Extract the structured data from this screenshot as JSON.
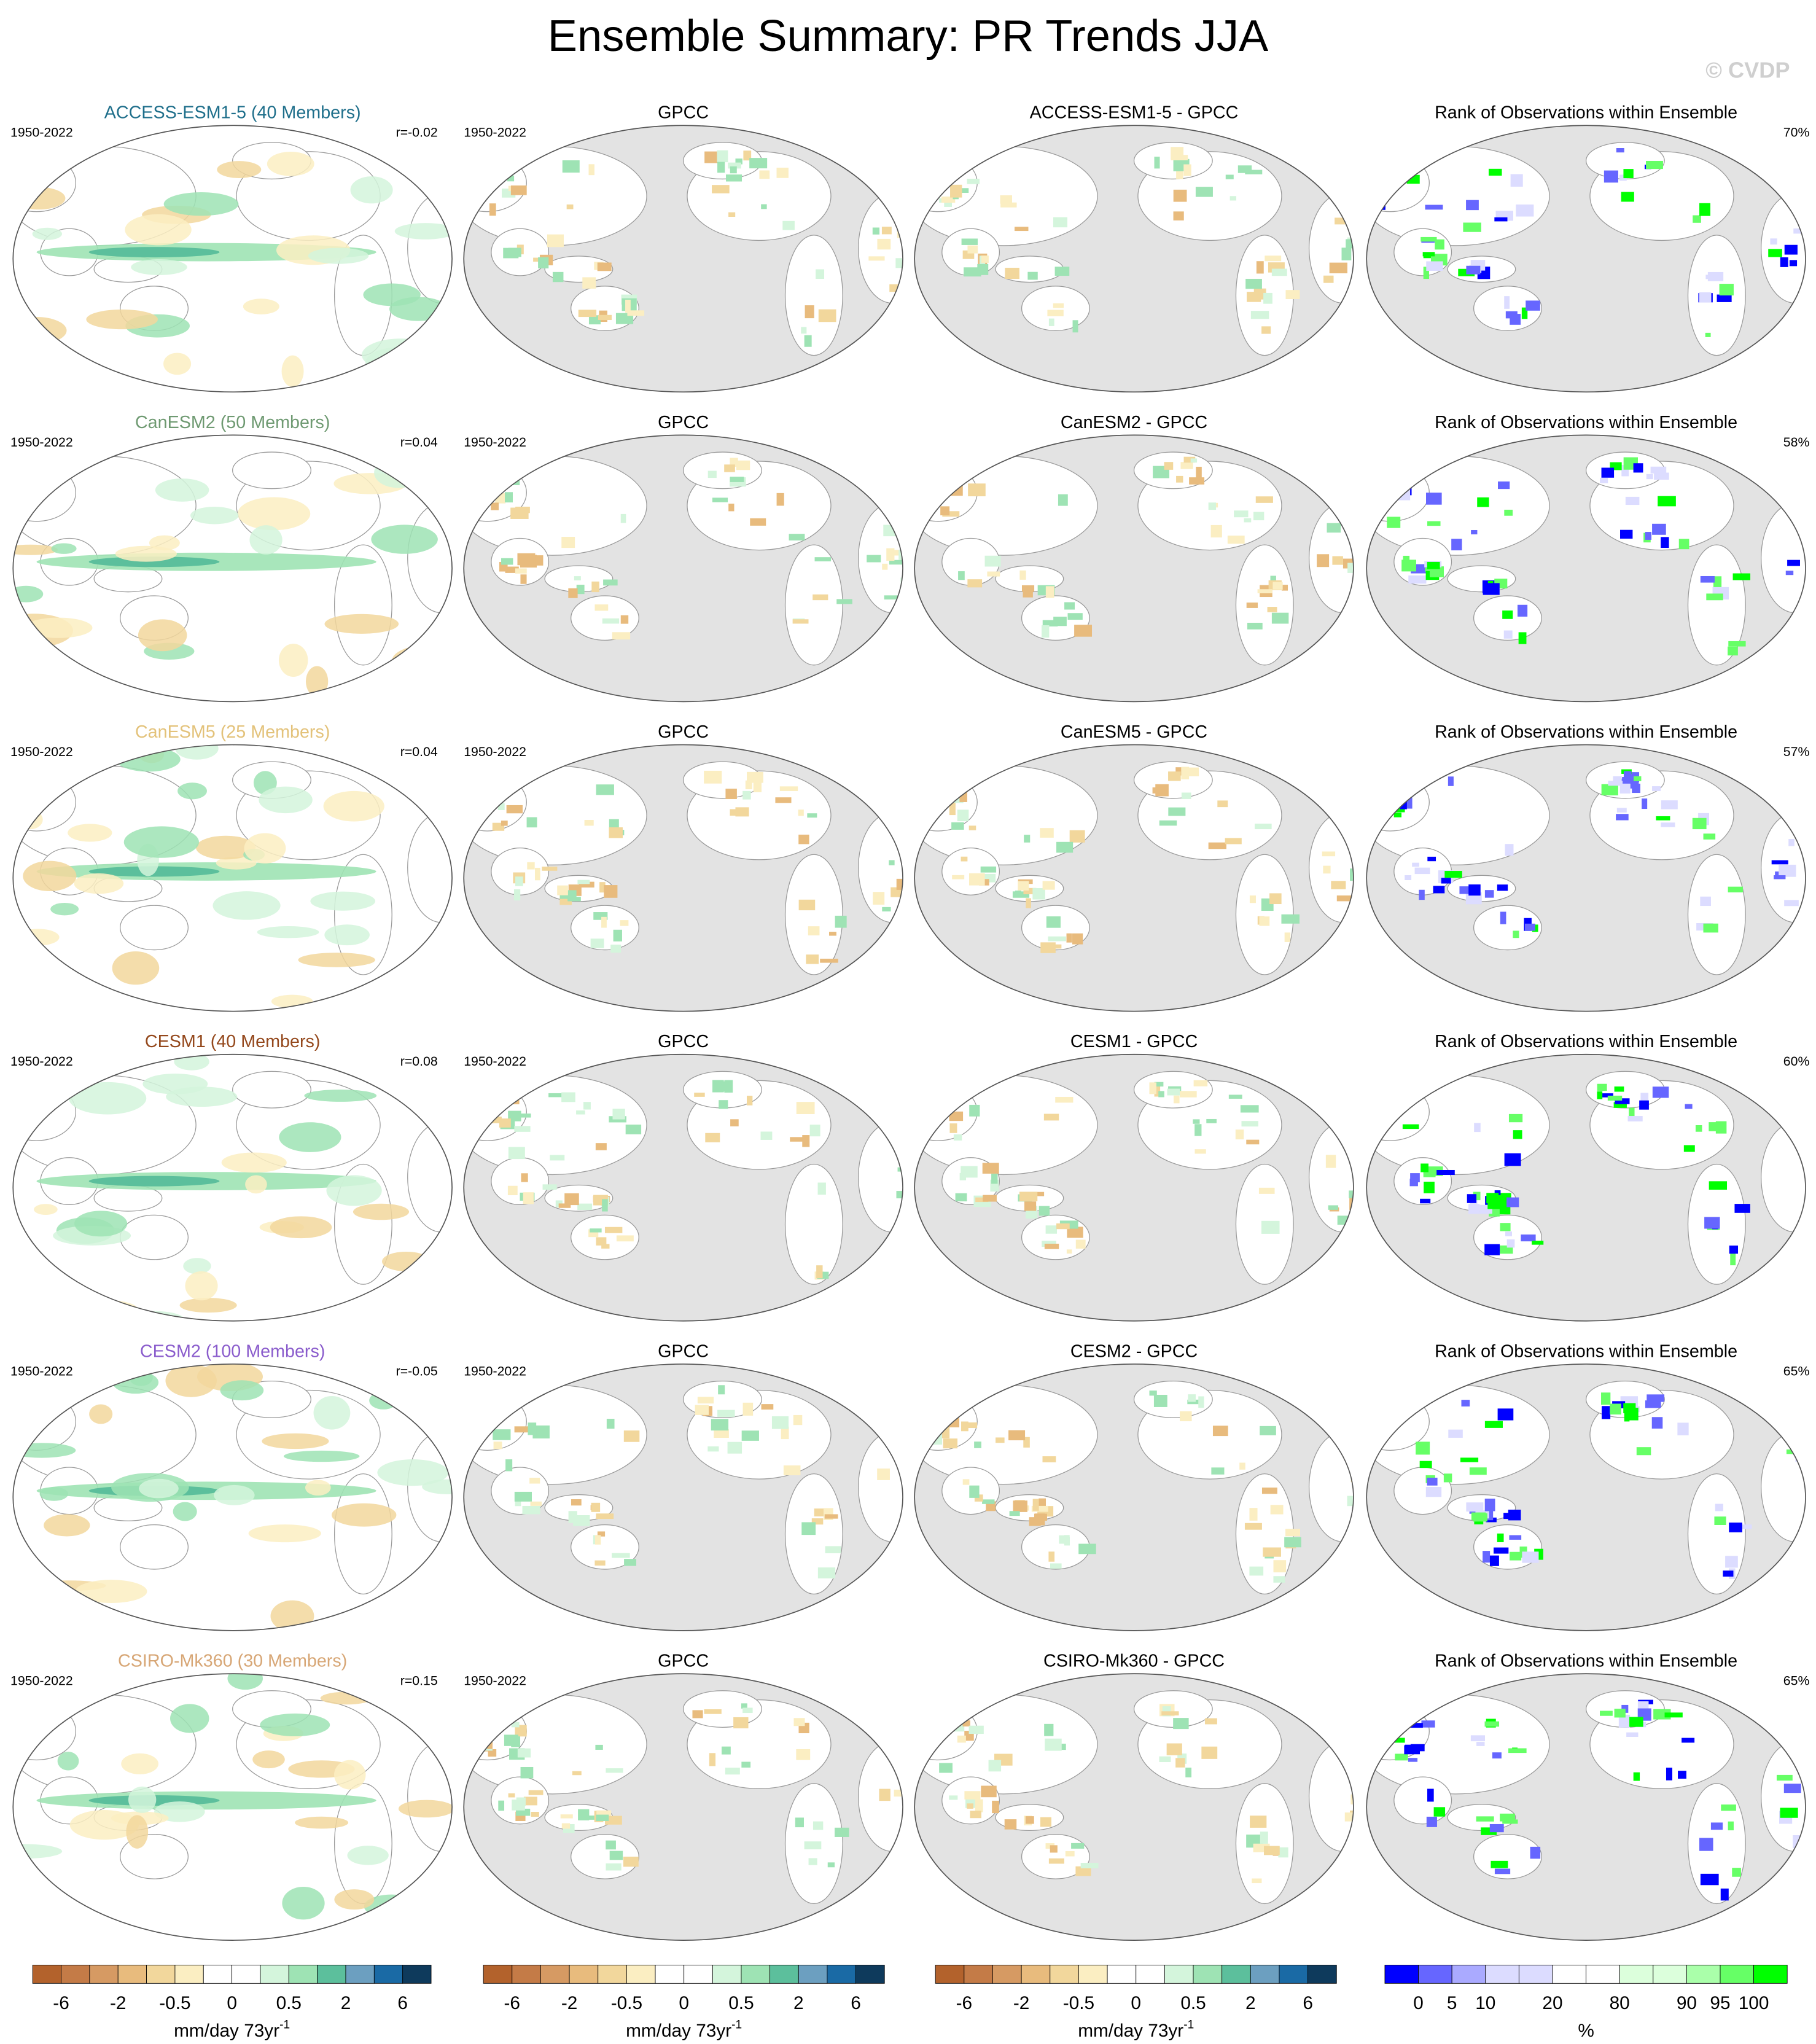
{
  "title": "Ensemble Summary: PR Trends JJA",
  "watermark": "© CVDP",
  "rows": [
    {
      "model": "ACCESS-ESM1-5 (40 Members)",
      "model_color": "#1f6f8b",
      "period": "1950-2022",
      "r": "r=-0.02",
      "obs_title": "GPCC",
      "obs_period": "1950-2022",
      "diff_title": "ACCESS-ESM1-5 - GPCC",
      "rank_title": "Rank of Observations within Ensemble",
      "rank_pct": "70%"
    },
    {
      "model": "CanESM2 (50 Members)",
      "model_color": "#6f9a72",
      "period": "1950-2022",
      "r": "r=0.04",
      "obs_title": "GPCC",
      "obs_period": "1950-2022",
      "diff_title": "CanESM2 - GPCC",
      "rank_title": "Rank of Observations within Ensemble",
      "rank_pct": "58%"
    },
    {
      "model": "CanESM5 (25 Members)",
      "model_color": "#e3c27a",
      "period": "1950-2022",
      "r": "r=0.04",
      "obs_title": "GPCC",
      "obs_period": "1950-2022",
      "diff_title": "CanESM5 - GPCC",
      "rank_title": "Rank of Observations within Ensemble",
      "rank_pct": "57%"
    },
    {
      "model": "CESM1 (40 Members)",
      "model_color": "#94481c",
      "period": "1950-2022",
      "r": "r=0.08",
      "obs_title": "GPCC",
      "obs_period": "1950-2022",
      "diff_title": "CESM1 - GPCC",
      "rank_title": "Rank of Observations within Ensemble",
      "rank_pct": "60%"
    },
    {
      "model": "CESM2 (100 Members)",
      "model_color": "#8a5ccc",
      "period": "1950-2022",
      "r": "r=-0.05",
      "obs_title": "GPCC",
      "obs_period": "1950-2022",
      "diff_title": "CESM2 - GPCC",
      "rank_title": "Rank of Observations within Ensemble",
      "rank_pct": "65%"
    },
    {
      "model": "CSIRO-Mk360 (30 Members)",
      "model_color": "#d7a675",
      "period": "1950-2022",
      "r": "r=0.15",
      "obs_title": "GPCC",
      "obs_period": "1950-2022",
      "diff_title": "CSIRO-Mk360 - GPCC",
      "rank_title": "Rank of Observations within Ensemble",
      "rank_pct": "65%"
    }
  ],
  "colorbars": [
    {
      "labels": [
        -6,
        -2,
        -0.5,
        0,
        0.5,
        2,
        6
      ],
      "unit": "mm/day 73yr",
      "unit_sup": "-1",
      "colors": [
        "#b3622c",
        "#c47b47",
        "#d69a63",
        "#e8bb7d",
        "#f2d79c",
        "#fbeec2",
        "#ffffff",
        "#ffffff",
        "#d4f5dc",
        "#9ee3b4",
        "#5cbf9c",
        "#6c9fc0",
        "#1a6aa5",
        "#0e3a5c"
      ]
    },
    {
      "labels": [
        -6,
        -2,
        -0.5,
        0,
        0.5,
        2,
        6
      ],
      "unit": "mm/day 73yr",
      "unit_sup": "-1",
      "colors": [
        "#b3622c",
        "#c47b47",
        "#d69a63",
        "#e8bb7d",
        "#f2d79c",
        "#fbeec2",
        "#ffffff",
        "#ffffff",
        "#d4f5dc",
        "#9ee3b4",
        "#5cbf9c",
        "#6c9fc0",
        "#1a6aa5",
        "#0e3a5c"
      ]
    },
    {
      "labels": [
        -6,
        -2,
        -0.5,
        0,
        0.5,
        2,
        6
      ],
      "unit": "mm/day 73yr",
      "unit_sup": "-1",
      "colors": [
        "#b3622c",
        "#c47b47",
        "#d69a63",
        "#e8bb7d",
        "#f2d79c",
        "#fbeec2",
        "#ffffff",
        "#ffffff",
        "#d4f5dc",
        "#9ee3b4",
        "#5cbf9c",
        "#6c9fc0",
        "#1a6aa5",
        "#0e3a5c"
      ]
    },
    {
      "labels": [
        0,
        5,
        10,
        20,
        80,
        90,
        95,
        100
      ],
      "unit": "%",
      "colors": [
        "#0000ff",
        "#6666ff",
        "#aaaaff",
        "#dcdcff",
        "#dcdcff",
        "#ffffff",
        "#ffffff",
        "#dcffdc",
        "#dcffdc",
        "#aaffaa",
        "#66ff66",
        "#00ff00"
      ]
    }
  ]
}
